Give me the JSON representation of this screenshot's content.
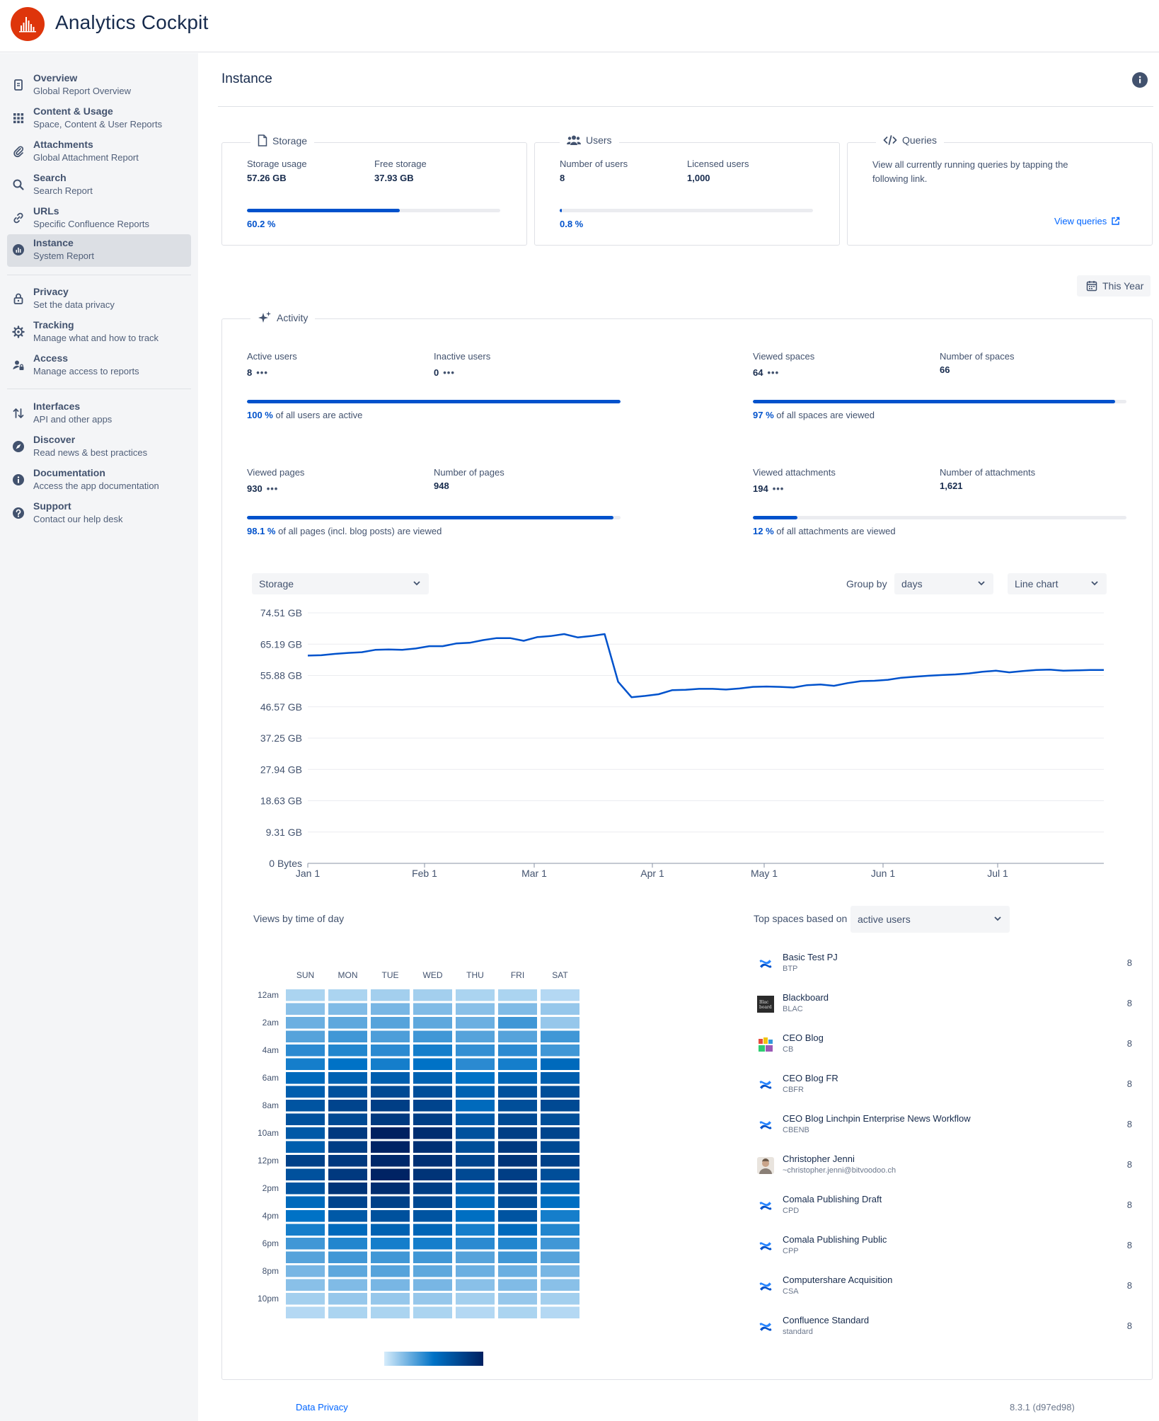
{
  "app": {
    "title": "Analytics Cockpit",
    "logo_icon": "bar-chart-logo-icon",
    "accent": "#de350b"
  },
  "sidebar": {
    "items": [
      {
        "title": "Overview",
        "sub": "Global Report Overview",
        "icon": "document-icon"
      },
      {
        "title": "Content & Usage",
        "sub": "Space, Content & User Reports",
        "icon": "grid-icon"
      },
      {
        "title": "Attachments",
        "sub": "Global Attachment Report",
        "icon": "paperclip-icon"
      },
      {
        "title": "Search",
        "sub": "Search Report",
        "icon": "search-icon"
      },
      {
        "title": "URLs",
        "sub": "Specific Confluence Reports",
        "icon": "link-icon"
      },
      {
        "title": "Instance",
        "sub": "System Report",
        "icon": "instance-icon",
        "active": true
      },
      {
        "title": "Privacy",
        "sub": "Set the data privacy",
        "icon": "lock-icon"
      },
      {
        "title": "Tracking",
        "sub": "Manage what and how to track",
        "icon": "gear-icon"
      },
      {
        "title": "Access",
        "sub": "Manage access to reports",
        "icon": "user-lock-icon"
      },
      {
        "title": "Interfaces",
        "sub": "API and other apps",
        "icon": "arrows-icon"
      },
      {
        "title": "Discover",
        "sub": "Read news & best practices",
        "icon": "compass-icon"
      },
      {
        "title": "Documentation",
        "sub": "Access the app documentation",
        "icon": "info-icon"
      },
      {
        "title": "Support",
        "sub": "Contact our help desk",
        "icon": "help-icon"
      }
    ]
  },
  "page": {
    "title": "Instance"
  },
  "storage": {
    "legend": "Storage",
    "usage_label": "Storage usage",
    "usage_value": "57.26 GB",
    "free_label": "Free storage",
    "free_value": "37.93 GB",
    "percent_text": "60.2 %",
    "percent": 60.2
  },
  "users": {
    "legend": "Users",
    "count_label": "Number of users",
    "count_value": "8",
    "licensed_label": "Licensed users",
    "licensed_value": "1,000",
    "percent_text": "0.8 %",
    "percent": 0.8
  },
  "queries": {
    "legend": "Queries",
    "text": "View all currently running queries by tapping the following link.",
    "link": "View queries"
  },
  "period": {
    "label": "This Year"
  },
  "activity": {
    "legend": "Activity",
    "blocks": [
      {
        "a_label": "Active users",
        "a_value": "8",
        "a_more": "•••",
        "b_label": "Inactive users",
        "b_value": "0",
        "b_more": "•••",
        "pct_value": "100 %",
        "pct_text": " of all users are active",
        "percent": 100
      },
      {
        "a_label": "Viewed spaces",
        "a_value": "64",
        "a_more": "•••",
        "b_label": "Number of spaces",
        "b_value": "66",
        "pct_value": "97 %",
        "pct_text": " of all spaces are viewed",
        "percent": 97
      },
      {
        "a_label": "Viewed pages",
        "a_value": "930",
        "a_more": "•••",
        "b_label": "Number of pages",
        "b_value": "948",
        "pct_value": "98.1 %",
        "pct_text": " of all pages (incl. blog posts) are viewed",
        "percent": 98.1
      },
      {
        "a_label": "Viewed attachments",
        "a_value": "194",
        "a_more": "•••",
        "b_label": "Number of attachments",
        "b_value": "1,621",
        "pct_value": "12 %",
        "pct_text": " of all attachments are viewed",
        "percent": 12
      }
    ]
  },
  "chart_controls": {
    "metric": "Storage",
    "group_by_label": "Group by",
    "group_by": "days",
    "chart_type": "Line chart"
  },
  "chart_data": [
    {
      "type": "line",
      "series": [
        {
          "values_gb": [
            61.8,
            61.9,
            62.3,
            62.6,
            62.8,
            63.5,
            63.6,
            63.5,
            63.9,
            64.6,
            64.6,
            65.4,
            65.6,
            66.4,
            67.0,
            67.0,
            66.2,
            67.3,
            67.6,
            68.2,
            67.2,
            67.6,
            68.2,
            54.0,
            49.4,
            49.8,
            50.3,
            51.5,
            51.6,
            51.9,
            51.9,
            51.7,
            52.0,
            52.5,
            52.6,
            52.5,
            52.3,
            53.0,
            53.2,
            52.8,
            53.6,
            54.2,
            54.3,
            54.6,
            55.2,
            55.5,
            55.8,
            56.0,
            56.2,
            56.5,
            57.0,
            57.3,
            56.8,
            57.2,
            57.5,
            57.6,
            57.3,
            57.4,
            57.5,
            57.5
          ]
        }
      ],
      "x_ticks": [
        "Jan 1",
        "Feb 1",
        "Mar 1",
        "Apr 1",
        "May 1",
        "Jun 1",
        "Jul 1"
      ],
      "y_ticks": [
        "0 Bytes",
        "9.31 GB",
        "18.63 GB",
        "27.94 GB",
        "37.25 GB",
        "46.57 GB",
        "55.88 GB",
        "65.19 GB",
        "74.51 GB"
      ],
      "ylim": [
        0,
        74.51
      ],
      "series_color": "#0052cc",
      "grid": true
    },
    {
      "type": "heatmap",
      "columns": [
        "SUN",
        "MON",
        "TUE",
        "WED",
        "THU",
        "FRI",
        "SAT"
      ],
      "row_labels": [
        "12am",
        "2am",
        "4am",
        "6am",
        "8am",
        "10am",
        "12pm",
        "2pm",
        "4pm",
        "6pm",
        "8pm",
        "10pm"
      ],
      "rows": 24,
      "values": [
        [
          0.1,
          0.1,
          0.12,
          0.12,
          0.1,
          0.1,
          0.08
        ],
        [
          0.18,
          0.2,
          0.22,
          0.2,
          0.18,
          0.2,
          0.15
        ],
        [
          0.25,
          0.28,
          0.3,
          0.28,
          0.25,
          0.35,
          0.15
        ],
        [
          0.3,
          0.35,
          0.32,
          0.35,
          0.3,
          0.3,
          0.35
        ],
        [
          0.4,
          0.42,
          0.4,
          0.45,
          0.38,
          0.4,
          0.35
        ],
        [
          0.45,
          0.5,
          0.45,
          0.5,
          0.4,
          0.45,
          0.55
        ],
        [
          0.55,
          0.6,
          0.62,
          0.6,
          0.5,
          0.58,
          0.62
        ],
        [
          0.62,
          0.7,
          0.75,
          0.72,
          0.6,
          0.7,
          0.72
        ],
        [
          0.68,
          0.78,
          0.82,
          0.78,
          0.55,
          0.72,
          0.75
        ],
        [
          0.7,
          0.75,
          0.85,
          0.82,
          0.65,
          0.75,
          0.72
        ],
        [
          0.65,
          0.85,
          1.0,
          0.92,
          0.7,
          0.82,
          0.78
        ],
        [
          0.62,
          0.82,
          0.98,
          0.9,
          0.72,
          0.85,
          0.75
        ],
        [
          0.8,
          0.85,
          0.95,
          0.9,
          0.78,
          0.88,
          0.8
        ],
        [
          0.7,
          0.85,
          0.98,
          0.88,
          0.75,
          0.82,
          0.72
        ],
        [
          0.68,
          0.88,
          0.92,
          0.82,
          0.62,
          0.78,
          0.6
        ],
        [
          0.55,
          0.78,
          0.8,
          0.75,
          0.55,
          0.72,
          0.52
        ],
        [
          0.5,
          0.65,
          0.7,
          0.68,
          0.52,
          0.68,
          0.45
        ],
        [
          0.45,
          0.55,
          0.6,
          0.58,
          0.45,
          0.55,
          0.42
        ],
        [
          0.35,
          0.42,
          0.45,
          0.45,
          0.4,
          0.42,
          0.35
        ],
        [
          0.3,
          0.35,
          0.35,
          0.35,
          0.3,
          0.35,
          0.3
        ],
        [
          0.22,
          0.28,
          0.3,
          0.28,
          0.25,
          0.25,
          0.22
        ],
        [
          0.18,
          0.2,
          0.22,
          0.22,
          0.18,
          0.2,
          0.18
        ],
        [
          0.12,
          0.15,
          0.15,
          0.15,
          0.12,
          0.15,
          0.12
        ],
        [
          0.08,
          0.1,
          0.1,
          0.1,
          0.08,
          0.1,
          0.08
        ]
      ],
      "color_scale": [
        "#d6ecfb",
        "#0072c6",
        "#002060"
      ]
    }
  ],
  "heatmap": {
    "title": "Views by time of day"
  },
  "top_spaces": {
    "label": "Top spaces based on",
    "selected": "active users",
    "items": [
      {
        "name": "Basic Test PJ",
        "key": "BTP",
        "count": "8",
        "icon": "confluence-icon"
      },
      {
        "name": "Blackboard",
        "key": "BLAC",
        "count": "8",
        "icon": "blackboard-icon"
      },
      {
        "name": "CEO Blog",
        "key": "CB",
        "count": "8",
        "icon": "ceo-blog-icon"
      },
      {
        "name": "CEO Blog FR",
        "key": "CBFR",
        "count": "8",
        "icon": "confluence-icon"
      },
      {
        "name": "CEO Blog Linchpin Enterprise News Workflow",
        "key": "CBENB",
        "count": "8",
        "icon": "confluence-icon"
      },
      {
        "name": "Christopher Jenni",
        "key": "~christopher.jenni@bitvoodoo.ch",
        "count": "8",
        "icon": "avatar-icon"
      },
      {
        "name": "Comala Publishing Draft",
        "key": "CPD",
        "count": "8",
        "icon": "confluence-icon"
      },
      {
        "name": "Comala Publishing Public",
        "key": "CPP",
        "count": "8",
        "icon": "confluence-icon"
      },
      {
        "name": "Computershare Acquisition",
        "key": "CSA",
        "count": "8",
        "icon": "confluence-icon"
      },
      {
        "name": "Confluence Standard",
        "key": "standard",
        "count": "8",
        "icon": "confluence-icon"
      }
    ]
  },
  "footer": {
    "privacy_link": "Data Privacy",
    "version": "8.3.1 (d97ed98)"
  }
}
